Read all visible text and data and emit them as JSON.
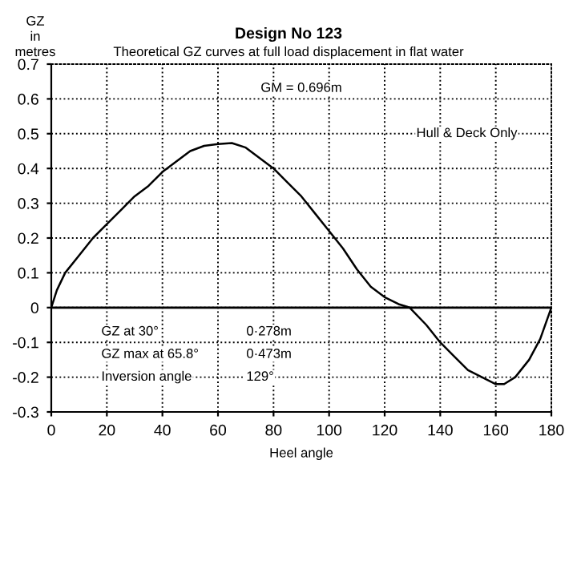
{
  "chart_data": {
    "type": "line",
    "title": "Design No 123",
    "subtitle": "Theoretical GZ curves at full load displacement in flat water",
    "xlabel": "Heel angle",
    "ylabel": "GZ\nin\nmetres",
    "x": [
      0,
      2,
      5,
      10,
      15,
      20,
      25,
      30,
      35,
      40,
      45,
      50,
      55,
      60,
      65,
      70,
      75,
      80,
      85,
      90,
      95,
      100,
      105,
      110,
      115,
      120,
      125,
      129,
      135,
      140,
      145,
      150,
      155,
      160,
      163,
      167,
      172,
      176,
      180
    ],
    "series": [
      {
        "color": "#000000",
        "values": [
          0,
          0.05,
          0.1,
          0.15,
          0.2,
          0.24,
          0.28,
          0.32,
          0.35,
          0.39,
          0.42,
          0.45,
          0.465,
          0.47,
          0.473,
          0.46,
          0.43,
          0.4,
          0.36,
          0.32,
          0.27,
          0.22,
          0.17,
          0.11,
          0.06,
          0.03,
          0.01,
          0,
          -0.05,
          -0.1,
          -0.14,
          -0.18,
          -0.2,
          -0.22,
          -0.22,
          -0.2,
          -0.15,
          -0.09,
          0
        ]
      }
    ],
    "xlim": [
      0,
      180
    ],
    "xticks": [
      0,
      20,
      40,
      60,
      80,
      100,
      120,
      140,
      160,
      180
    ],
    "ylim": [
      -0.3,
      0.7
    ],
    "yticks": [
      -0.3,
      -0.2,
      -0.1,
      0,
      0.1,
      0.2,
      0.3,
      0.4,
      0.5,
      0.6,
      0.7
    ],
    "ref_lines": [
      {
        "axis": "y",
        "value": 0,
        "color": "#000000"
      }
    ],
    "grid": true,
    "line_style": "solid",
    "marker": "none",
    "annotations": [
      "GM = 0.696m",
      "Hull & Deck Only",
      "GZ at 30°",
      "0·278m",
      "GZ max at 65.8°",
      "0·473m",
      "Inversion angle",
      "129°"
    ]
  }
}
